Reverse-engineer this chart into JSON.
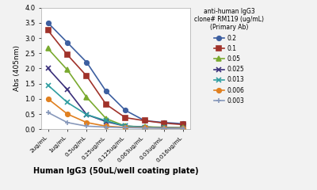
{
  "x_labels": [
    "2ug/mL",
    "1ug/mL",
    "0.5ug/mL",
    "0.25ug/mL",
    "0.125ug/mL",
    "0.063ug/mL",
    "0.03ug/mL",
    "0.016ug/mL"
  ],
  "xlabel": "Human IgG3 (50uL/well coating plate)",
  "ylabel": "Abs (405nm)",
  "legend_title": "anti-human IgG3\nclone# RM119 (ug/mL)\n(Primary Ab)",
  "ylim": [
    0,
    4
  ],
  "yticks": [
    0,
    0.5,
    1.0,
    1.5,
    2.0,
    2.5,
    3.0,
    3.5,
    4.0
  ],
  "series": [
    {
      "label": "0.2",
      "color": "#3D5FA0",
      "marker": "o",
      "values": [
        3.5,
        2.85,
        2.2,
        1.25,
        0.62,
        0.28,
        0.22,
        0.18
      ]
    },
    {
      "label": "0.1",
      "color": "#A0322A",
      "marker": "s",
      "values": [
        3.25,
        2.45,
        1.75,
        0.82,
        0.38,
        0.28,
        0.2,
        0.15
      ]
    },
    {
      "label": "0.05",
      "color": "#7AAA30",
      "marker": "^",
      "values": [
        2.65,
        1.95,
        1.05,
        0.35,
        0.1,
        0.08,
        0.06,
        0.05
      ]
    },
    {
      "label": "0.025",
      "color": "#3A2F7A",
      "marker": "x",
      "values": [
        2.0,
        1.3,
        0.48,
        0.25,
        0.1,
        0.07,
        0.05,
        0.04
      ]
    },
    {
      "label": "0.013",
      "color": "#2E9DA0",
      "marker": "x",
      "values": [
        1.45,
        0.88,
        0.48,
        0.28,
        0.1,
        0.07,
        0.05,
        0.04
      ]
    },
    {
      "label": "0.006",
      "color": "#E08020",
      "marker": "o",
      "values": [
        1.0,
        0.5,
        0.22,
        0.1,
        0.06,
        0.05,
        0.04,
        0.04
      ]
    },
    {
      "label": "0.003",
      "color": "#8899BB",
      "marker": "+",
      "values": [
        0.55,
        0.22,
        0.1,
        0.07,
        0.05,
        0.04,
        0.03,
        0.03
      ]
    }
  ],
  "fig_bg_color": "#F2F2F2",
  "plot_bg_color": "#FFFFFF",
  "grid_color": "#FFFFFF"
}
